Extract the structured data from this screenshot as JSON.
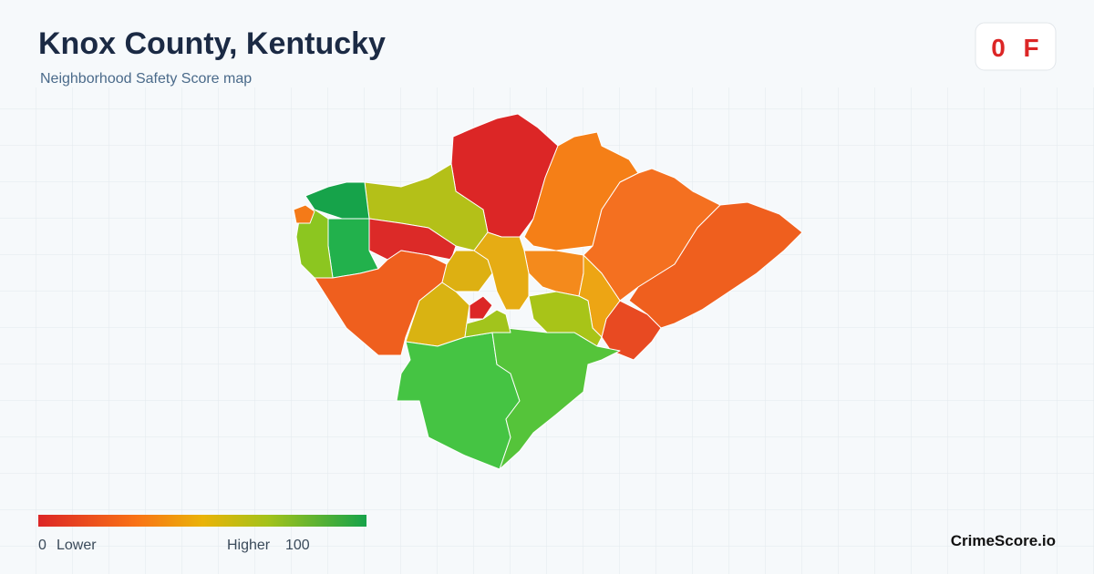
{
  "header": {
    "title": "Knox County, Kentucky",
    "subtitle": "Neighborhood Safety Score map"
  },
  "badge": {
    "score": 0,
    "grade": "F"
  },
  "legend": {
    "min": 0,
    "min_label": "Lower",
    "max_label": "Higher",
    "max": 100
  },
  "brand": "CrimeScore.io"
}
